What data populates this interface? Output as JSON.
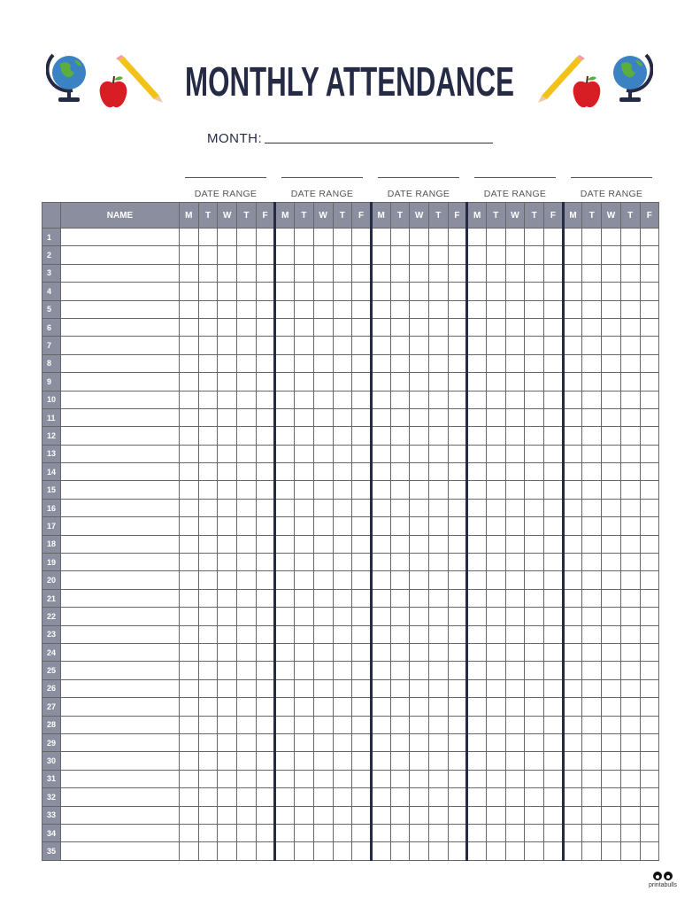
{
  "title": "MONTHLY ATTENDANCE",
  "month_label": "MONTH:",
  "date_range_label": "DATE RANGE",
  "date_range_count": 5,
  "table": {
    "name_header": "NAME",
    "days": [
      "M",
      "T",
      "W",
      "T",
      "F"
    ],
    "row_numbers": [
      "1",
      "2",
      "3",
      "4",
      "5",
      "6",
      "7",
      "8",
      "9",
      "10",
      "11",
      "12",
      "13",
      "14",
      "15",
      "16",
      "17",
      "18",
      "19",
      "20",
      "21",
      "22",
      "23",
      "24",
      "25",
      "26",
      "27",
      "28",
      "29",
      "30",
      "31",
      "32",
      "33",
      "34",
      "35"
    ]
  },
  "logo_text": "printabulls",
  "colors": {
    "header": "#8a8e9e",
    "accent": "#262b45"
  },
  "icons": [
    "globe-icon",
    "apple-icon",
    "pencil-icon"
  ]
}
